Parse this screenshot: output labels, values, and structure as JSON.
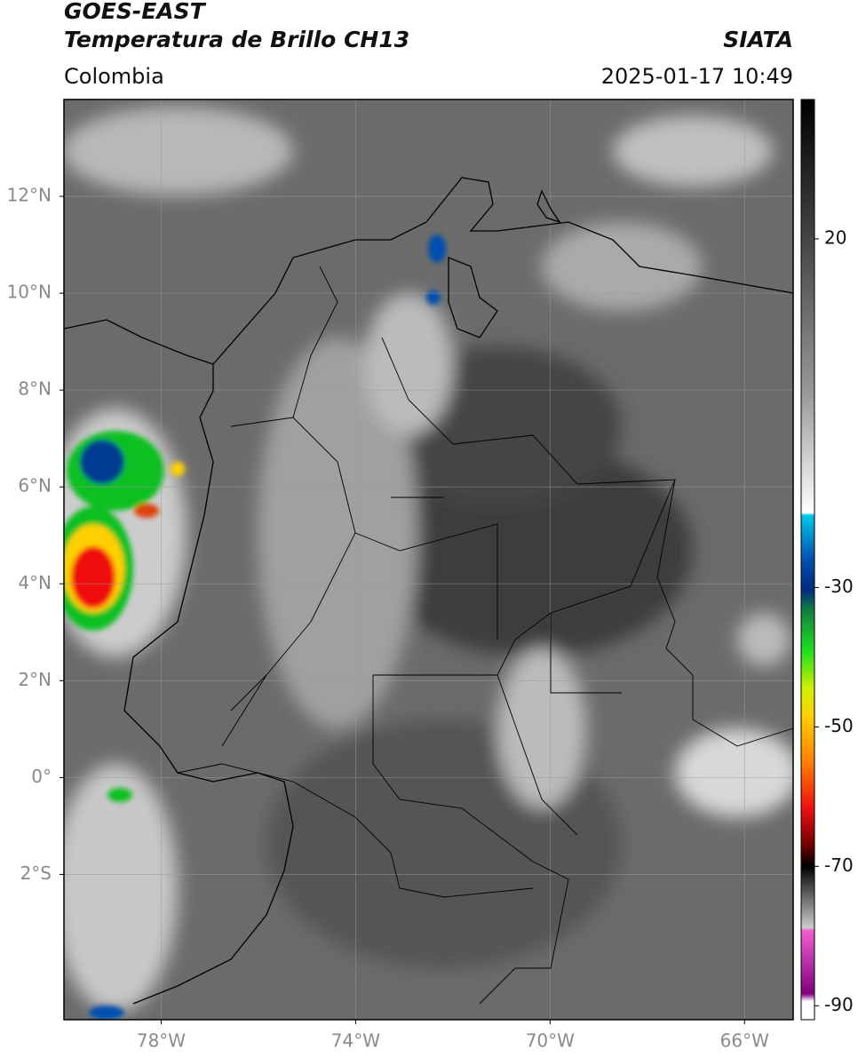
{
  "header": {
    "satellite": "GOES-EAST",
    "product": "Temperatura de Brillo CH13",
    "agency": "SIATA",
    "region": "Colombia",
    "timestamp": "2025-01-17 10:49"
  },
  "map": {
    "lonlim": [
      -80,
      -65
    ],
    "latlim": [
      -5,
      14
    ],
    "lon_ticks": [
      {
        "value": -78,
        "label": "78°W"
      },
      {
        "value": -74,
        "label": "74°W"
      },
      {
        "value": -70,
        "label": "70°W"
      },
      {
        "value": -66,
        "label": "66°W"
      }
    ],
    "lat_ticks": [
      {
        "value": 12,
        "label": "12°N"
      },
      {
        "value": 10,
        "label": "10°N"
      },
      {
        "value": 8,
        "label": "8°N"
      },
      {
        "value": 6,
        "label": "6°N"
      },
      {
        "value": 4,
        "label": "4°N"
      },
      {
        "value": 2,
        "label": "2°N"
      },
      {
        "value": 0,
        "label": "0°"
      },
      {
        "value": -2,
        "label": "2°S"
      }
    ],
    "grid": true
  },
  "colorbar": {
    "range": [
      -92,
      40
    ],
    "ticks": [
      20,
      -30,
      -50,
      -70,
      -90
    ]
  }
}
